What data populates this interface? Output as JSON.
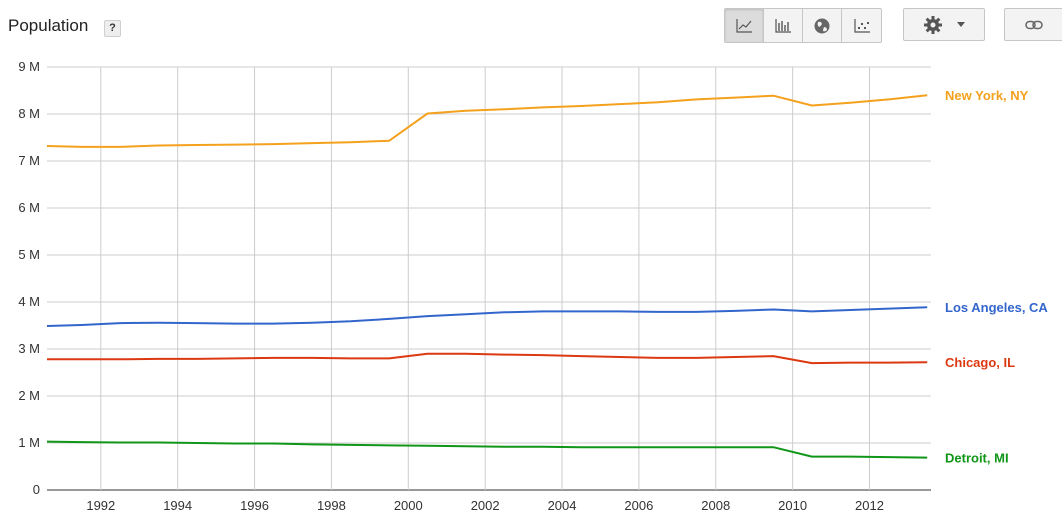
{
  "header": {
    "title": "Population",
    "help_label": "?"
  },
  "toolbar": {
    "chart_types": [
      {
        "icon": "line-chart-icon",
        "active": true
      },
      {
        "icon": "bar-chart-icon",
        "active": false
      },
      {
        "icon": "globe-icon",
        "active": false
      },
      {
        "icon": "scatter-chart-icon",
        "active": false
      }
    ],
    "settings_icon": "gear-icon",
    "dropdown_icon": "caret-down-icon",
    "link_icon": "link-icon"
  },
  "chart_data": {
    "type": "line",
    "title": "Population",
    "xlabel": "",
    "ylabel": "",
    "xlim": [
      1990.6,
      2013.6
    ],
    "ylim": [
      0,
      9000000
    ],
    "x_ticks": [
      "1992",
      "1994",
      "1996",
      "1998",
      "2000",
      "2002",
      "2004",
      "2006",
      "2008",
      "2010",
      "2012"
    ],
    "y_ticks": [
      "0",
      "1 M",
      "2 M",
      "3 M",
      "4 M",
      "5 M",
      "6 M",
      "7 M",
      "8 M",
      "9 M"
    ],
    "grid": true,
    "legend": "right-end labels",
    "x": [
      1990.5,
      1991.5,
      1992.5,
      1993.5,
      1994.5,
      1995.5,
      1996.5,
      1997.5,
      1998.5,
      1999.5,
      2000.5,
      2001.5,
      2002.5,
      2003.5,
      2004.5,
      2005.5,
      2006.5,
      2007.5,
      2008.5,
      2009.5,
      2010.5,
      2011.5,
      2012.5,
      2013.5
    ],
    "series": [
      {
        "name": "New York, NY",
        "color": "#f4a11d",
        "values": [
          7320000,
          7300000,
          7300000,
          7330000,
          7340000,
          7350000,
          7360000,
          7380000,
          7400000,
          7430000,
          8010000,
          8070000,
          8100000,
          8140000,
          8170000,
          8210000,
          8250000,
          8310000,
          8350000,
          8390000,
          8180000,
          8240000,
          8310000,
          8400000
        ]
      },
      {
        "name": "Los Angeles, CA",
        "color": "#3366cc",
        "values": [
          3490000,
          3510000,
          3550000,
          3560000,
          3550000,
          3540000,
          3540000,
          3560000,
          3590000,
          3640000,
          3700000,
          3740000,
          3780000,
          3800000,
          3800000,
          3800000,
          3790000,
          3790000,
          3810000,
          3840000,
          3800000,
          3830000,
          3860000,
          3890000
        ]
      },
      {
        "name": "Chicago, IL",
        "color": "#dc3912",
        "values": [
          2780000,
          2780000,
          2780000,
          2790000,
          2790000,
          2800000,
          2810000,
          2810000,
          2800000,
          2800000,
          2900000,
          2900000,
          2880000,
          2870000,
          2850000,
          2830000,
          2810000,
          2810000,
          2830000,
          2850000,
          2700000,
          2710000,
          2710000,
          2720000
        ]
      },
      {
        "name": "Detroit, MI",
        "color": "#109618",
        "values": [
          1030000,
          1020000,
          1010000,
          1010000,
          1000000,
          990000,
          990000,
          970000,
          960000,
          950000,
          940000,
          930000,
          920000,
          920000,
          910000,
          910000,
          910000,
          910000,
          910000,
          910000,
          710000,
          710000,
          700000,
          690000
        ]
      }
    ]
  }
}
